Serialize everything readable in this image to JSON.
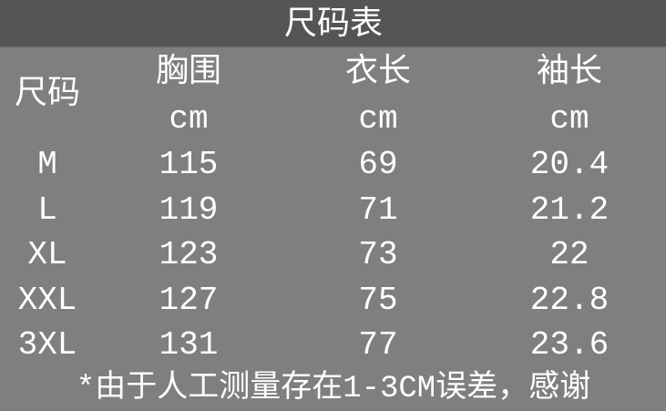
{
  "title": "尺码表",
  "header": {
    "size": "尺码",
    "columns": [
      {
        "label": "胸围",
        "unit": "cm"
      },
      {
        "label": "衣长",
        "unit": "cm"
      },
      {
        "label": "袖长",
        "unit": "cm"
      }
    ]
  },
  "rows": [
    {
      "size": "M",
      "values": [
        "115",
        "69",
        "20.4"
      ]
    },
    {
      "size": "L",
      "values": [
        "119",
        "71",
        "21.2"
      ]
    },
    {
      "size": "XL",
      "values": [
        "123",
        "73",
        "22"
      ]
    },
    {
      "size": "XXL",
      "values": [
        "127",
        "75",
        "22.8"
      ]
    },
    {
      "size": "3XL",
      "values": [
        "131",
        "77",
        "23.6"
      ]
    }
  ],
  "footnote": "*由于人工测量存在1-3CM误差，感谢",
  "colors": {
    "header_bg": "#555555",
    "body_bg": "#7f7f7f",
    "text": "#ffffff"
  }
}
